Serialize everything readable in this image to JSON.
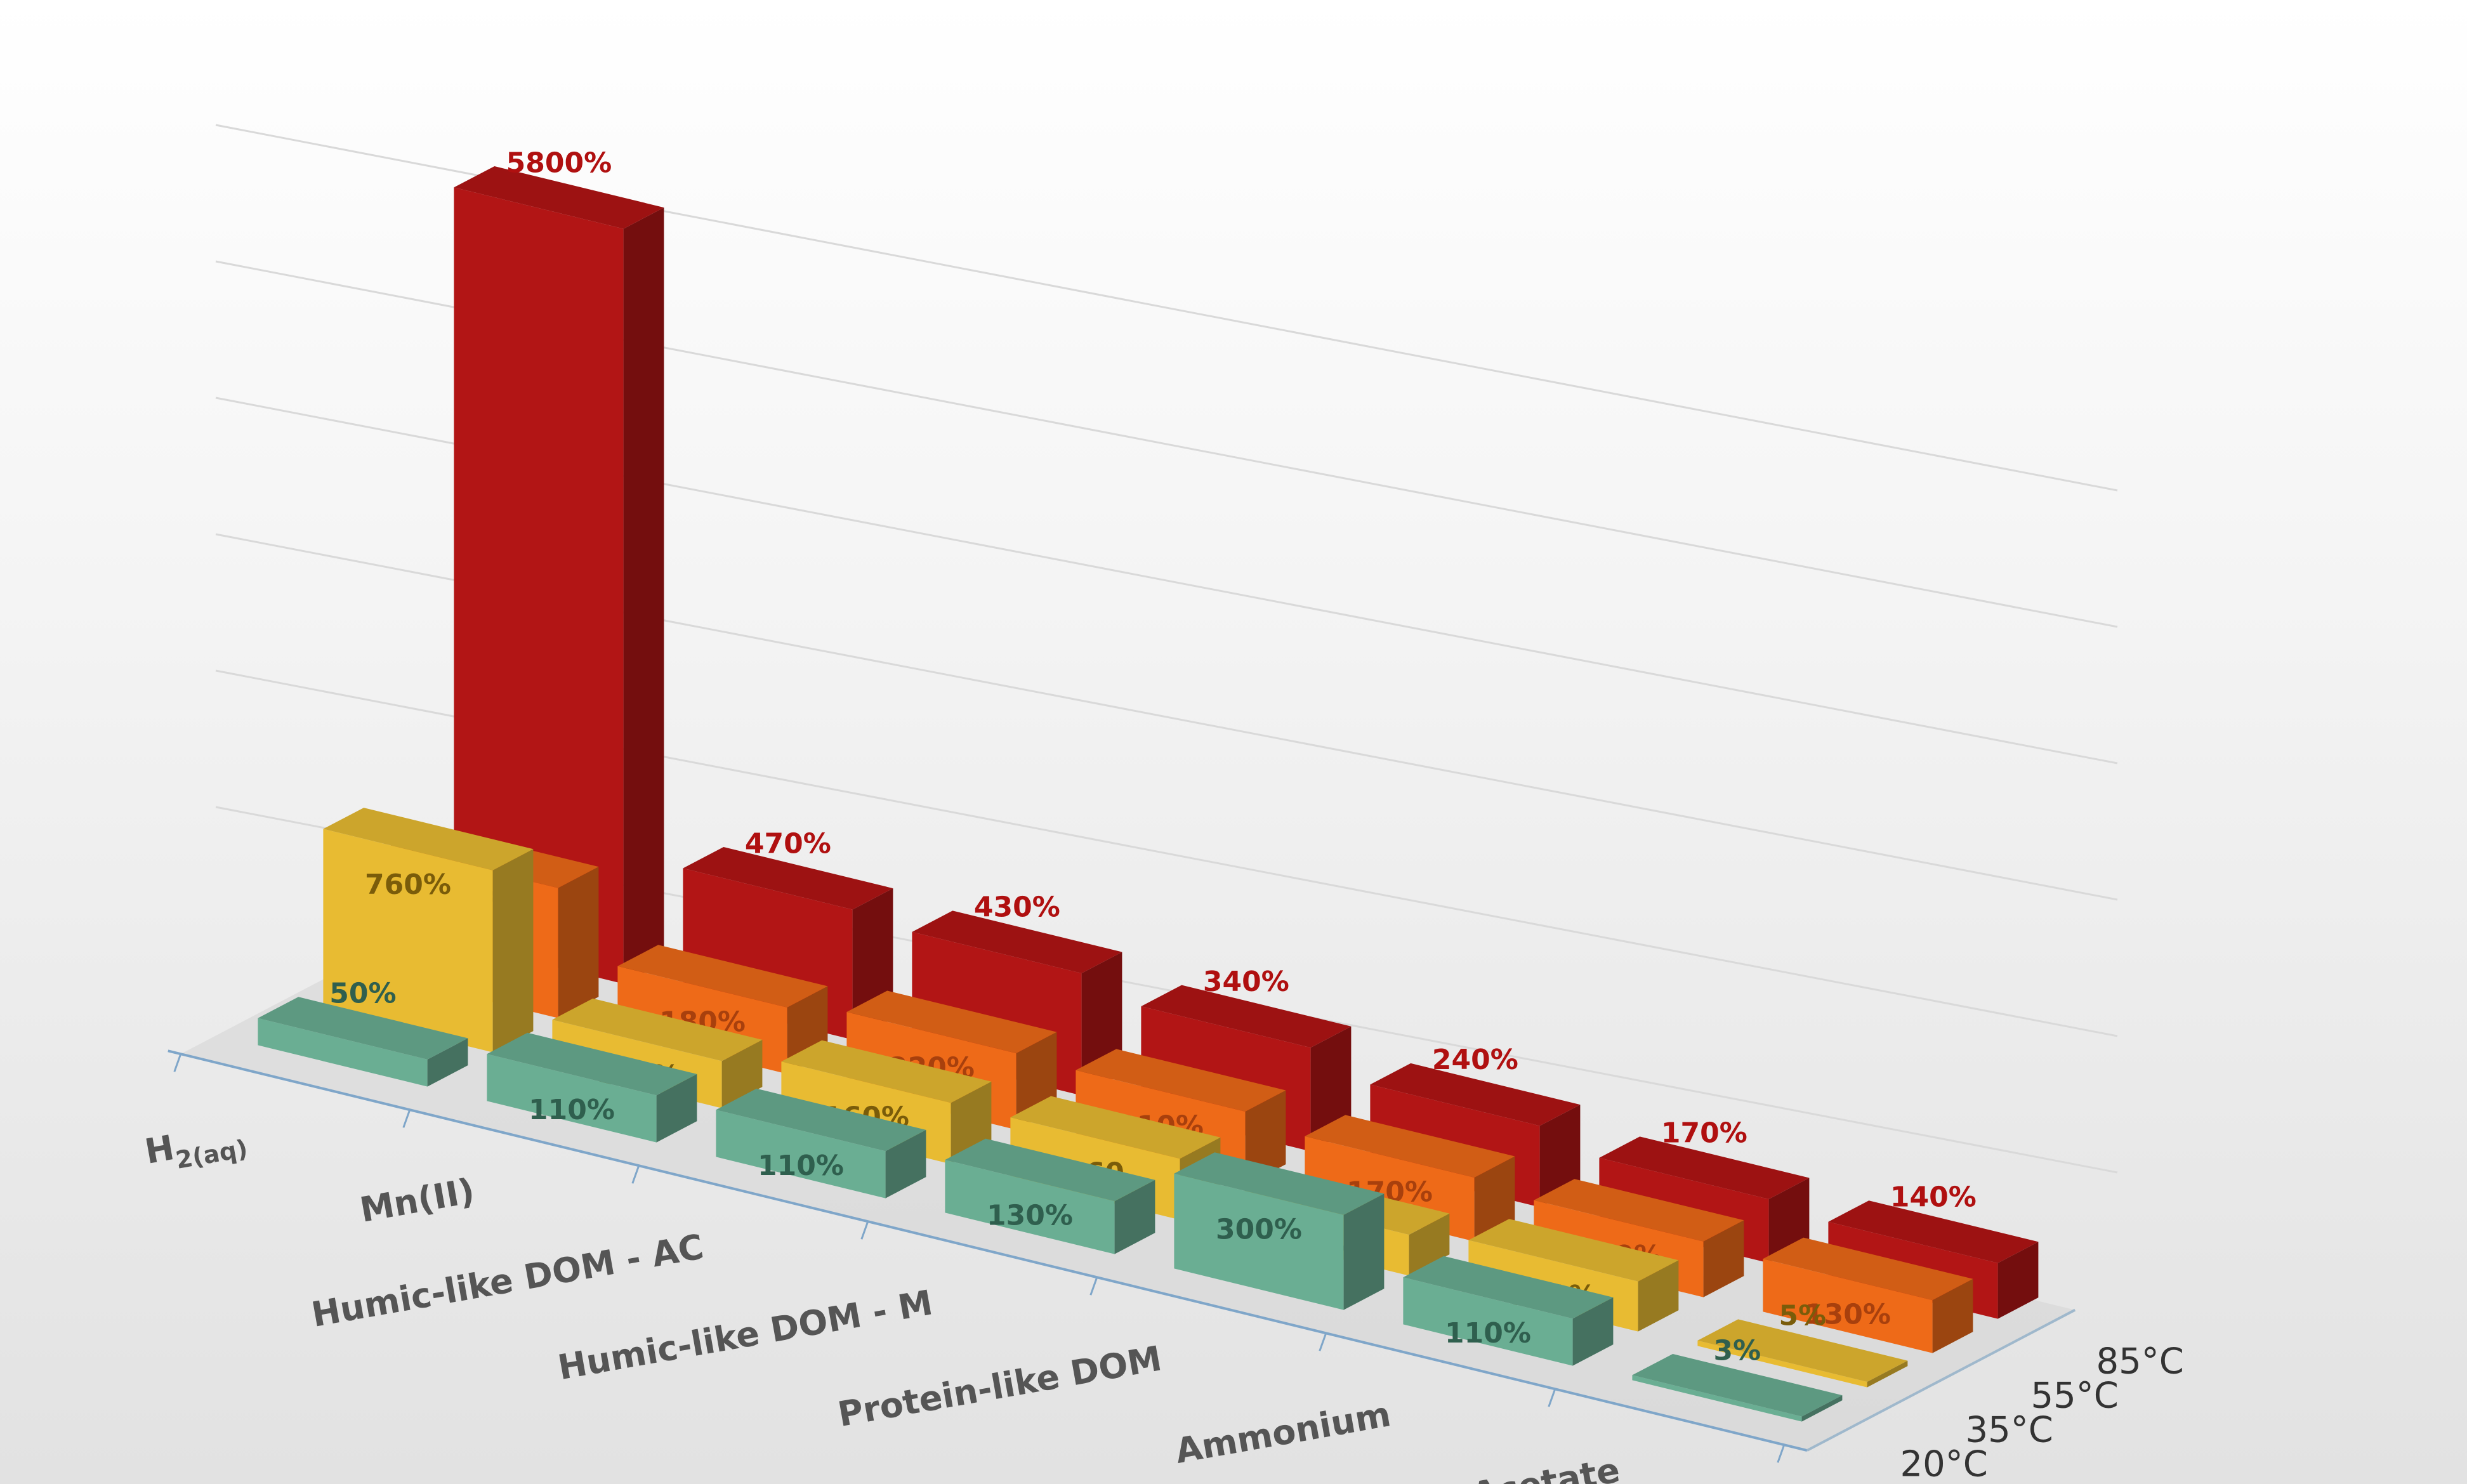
{
  "chart_data": {
    "type": "bar",
    "subtype": "3d-column",
    "categories": [
      "H2(aq)",
      "Mn(II)",
      "Humic-like DOM - AC",
      "Humic-like DOM - M",
      "Protein-like DOM",
      "Ammonium",
      "Acetate"
    ],
    "series": [
      {
        "name": "20°C",
        "values": [
          50,
          110,
          110,
          130,
          300,
          110,
          3
        ],
        "labels": [
          "50%",
          "110%",
          "110%",
          "130%",
          "300%",
          "110%",
          "3%"
        ]
      },
      {
        "name": "35°C",
        "values": [
          760,
          110,
          160,
          160,
          90,
          120,
          5
        ],
        "labels": [
          "760%",
          "110%",
          "160%",
          "160",
          "90%",
          "120%",
          "5%"
        ]
      },
      {
        "name": "55°C",
        "values": [
          470,
          180,
          220,
          210,
          170,
          140,
          130
        ],
        "labels": [
          "470%",
          "180%",
          "220%",
          "210%",
          "170%",
          "140%",
          "130%"
        ]
      },
      {
        "name": "85°C",
        "values": [
          5800,
          470,
          430,
          340,
          240,
          170,
          140
        ],
        "labels": [
          "5800%",
          "470%",
          "430%",
          "340%",
          "240%",
          "170%",
          "140%"
        ]
      }
    ],
    "title": "",
    "xlabel": "",
    "ylabel": "",
    "colors": {
      "20°C": "#6aae93",
      "35°C": "#e8bb32",
      "55°C": "#ee6a18",
      "85°C": "#b21515"
    },
    "label_colors": {
      "20°C": "#2f5f4e",
      "35°C": "#7a5c0a",
      "55°C": "#a8400d",
      "85°C": "#b01010"
    },
    "grid": true,
    "legend": "none"
  }
}
